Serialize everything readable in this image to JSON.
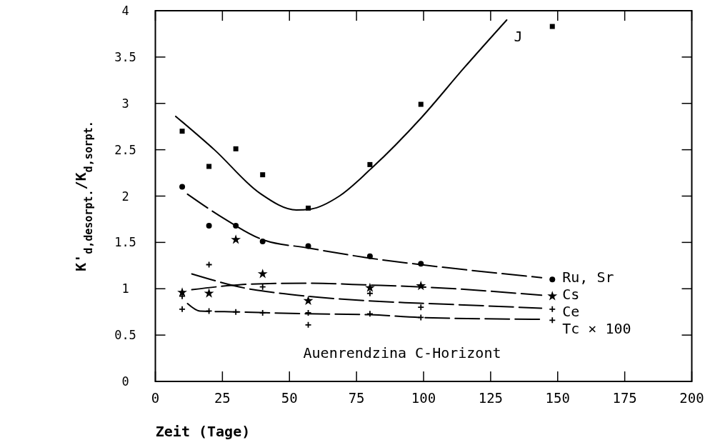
{
  "chart_data": {
    "type": "scatter",
    "xlabel": "Zeit (Tage)",
    "ylabel": "K'$_{d,desorpt.}$/K$_{d,sorpt.}$",
    "series": [
      {
        "marker": "square",
        "color": "#000000",
        "x": [
          10,
          20,
          30,
          40,
          57,
          80,
          99,
          148
        ],
        "values": [
          2.7,
          2.32,
          2.51,
          2.23,
          1.87,
          2.34,
          2.99,
          3.83
        ]
      },
      {
        "type": "line",
        "name": "J",
        "marker": "none",
        "line_style": "solid",
        "color": "#000000",
        "x": [
          7.6,
          22,
          39,
          52.6,
          58,
          68.6,
          80.6,
          99,
          115,
          131
        ],
        "values": [
          2.86,
          2.5,
          2.03,
          1.85,
          1.86,
          2.0,
          2.3,
          2.84,
          3.38,
          3.9
        ]
      },
      {
        "marker": "circle",
        "color": "#000000",
        "x": [
          10,
          20,
          30,
          40,
          57,
          80,
          99,
          148
        ],
        "values": [
          2.1,
          1.68,
          1.68,
          1.51,
          1.46,
          1.35,
          1.27,
          1.1
        ]
      },
      {
        "type": "line",
        "name": "Ru, Sr",
        "marker": "none",
        "line_style": "dashed",
        "color": "#000000",
        "x": [
          12,
          26,
          40,
          57,
          80,
          99,
          144
        ],
        "values": [
          2.02,
          1.75,
          1.53,
          1.44,
          1.33,
          1.26,
          1.12
        ]
      },
      {
        "marker": "star",
        "color": "#000000",
        "x": [
          10,
          20,
          30,
          40,
          57,
          80,
          99,
          148
        ],
        "values": [
          0.96,
          0.95,
          1.53,
          1.16,
          0.87,
          1.01,
          1.03,
          0.92
        ]
      },
      {
        "type": "line",
        "name": "Cs",
        "marker": "none",
        "line_style": "dashed",
        "color": "#000000",
        "x": [
          13.6,
          26,
          35,
          56.6,
          80,
          99,
          144
        ],
        "values": [
          0.99,
          1.03,
          1.05,
          1.06,
          1.04,
          1.02,
          0.93
        ]
      },
      {
        "marker": "cross",
        "color": "#000000",
        "x": [
          10,
          20,
          40,
          57,
          80,
          99,
          148
        ],
        "values": [
          0.78,
          1.26,
          1.02,
          0.61,
          0.95,
          0.8,
          0.78
        ]
      },
      {
        "type": "line",
        "name": "Ce",
        "marker": "none",
        "line_style": "dashed",
        "color": "#000000",
        "x": [
          13.6,
          36.6,
          44,
          56.6,
          93,
          102,
          144
        ],
        "values": [
          1.16,
          0.99,
          0.96,
          0.92,
          0.85,
          0.84,
          0.79
        ]
      },
      {
        "marker": "cross",
        "color": "#000000",
        "x": [
          10,
          20,
          30,
          40,
          57,
          80,
          99,
          148
        ],
        "values": [
          0.92,
          0.76,
          0.75,
          0.74,
          0.74,
          0.73,
          0.69,
          0.66
        ]
      },
      {
        "type": "line",
        "name": "Tc × 100",
        "marker": "none",
        "line_style": "dashed",
        "color": "#000000",
        "x": [
          12,
          16.6,
          30,
          57,
          80,
          99,
          144
        ],
        "values": [
          0.84,
          0.76,
          0.75,
          0.73,
          0.72,
          0.69,
          0.67
        ]
      }
    ],
    "annotations": [
      "Auenrendzina C-Horizont"
    ],
    "xlim": [
      0,
      200
    ],
    "xticks": [
      0,
      25,
      50,
      75,
      100,
      125,
      150,
      175,
      200
    ],
    "ylim": [
      0,
      4
    ],
    "yticks": [
      0,
      0.5,
      1,
      1.5,
      2,
      2.5,
      3,
      3.5,
      4
    ],
    "grid": false,
    "legend": false
  }
}
